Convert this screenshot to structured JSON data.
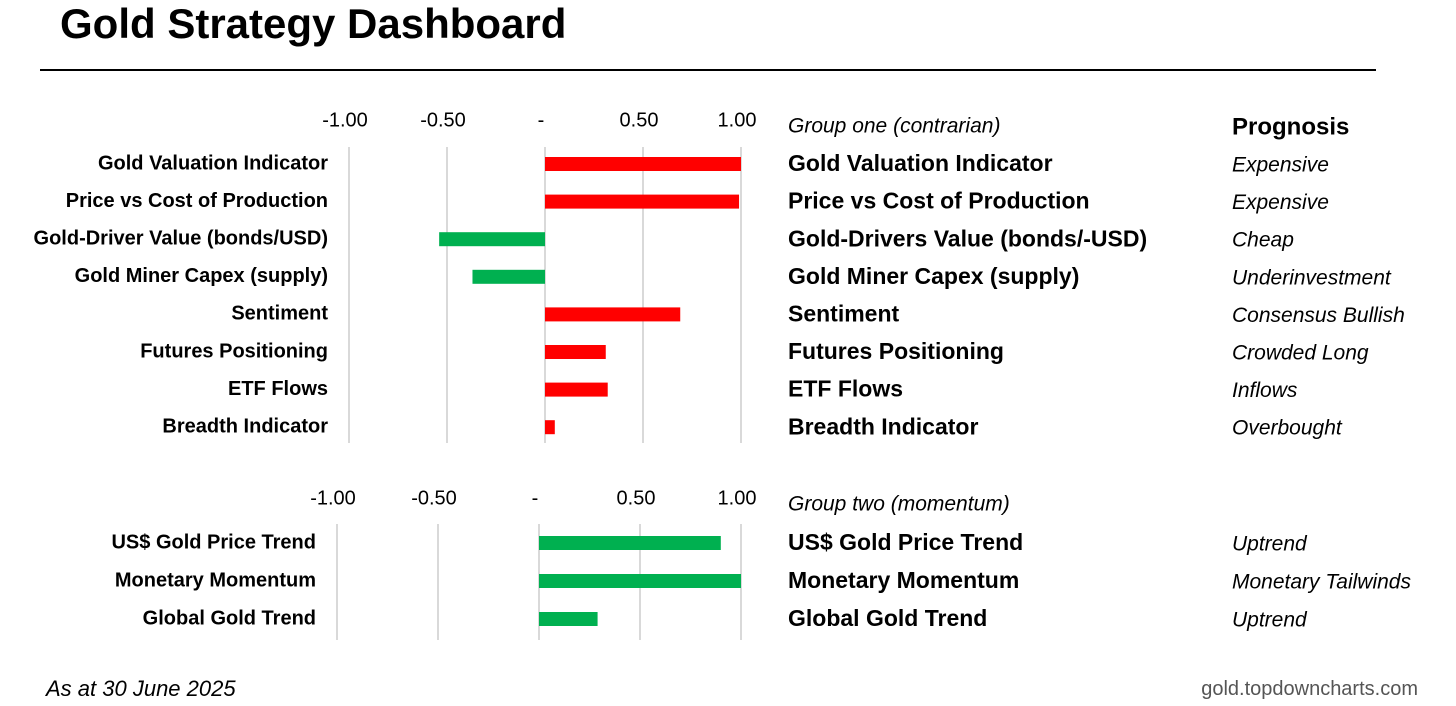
{
  "title": "Gold Strategy Dashboard",
  "prognosis_header": "Prognosis",
  "footer": {
    "date": "As at 30 June 2025",
    "source": "gold.topdowncharts.com"
  },
  "colors": {
    "positive_bar": "#ff0000",
    "negative_bar": "#00b050",
    "gridline": "#d9d9d9"
  },
  "chart_data": [
    {
      "type": "bar",
      "orientation": "horizontal",
      "title": "Group one (contrarian)",
      "xlim": [
        -1.0,
        1.0
      ],
      "ticks": [
        -1.0,
        -0.5,
        0,
        0.5,
        1.0
      ],
      "tick_labels": [
        "-1.00",
        "-0.50",
        "-",
        "0.50",
        "1.00"
      ],
      "color_rule": "positive=red, negative=green",
      "categories": [
        "Gold Valuation Indicator",
        "Price vs Cost of Production",
        "Gold-Driver Value (bonds/USD)",
        "Gold Miner Capex (supply)",
        "Sentiment",
        "Futures Positioning",
        "ETF Flows",
        "Breadth Indicator"
      ],
      "values": [
        1.0,
        0.99,
        -0.54,
        -0.37,
        0.69,
        0.31,
        0.32,
        0.05
      ],
      "table_names": [
        "Gold Valuation Indicator",
        "Price vs Cost of Production",
        "Gold-Drivers Value (bonds/-USD)",
        "Gold Miner Capex (supply)",
        "Sentiment",
        "Futures Positioning",
        "ETF Flows",
        "Breadth Indicator"
      ],
      "prognosis": [
        "Expensive",
        "Expensive",
        "Cheap",
        "Underinvestment",
        "Consensus Bullish",
        "Crowded Long",
        "Inflows",
        "Overbought"
      ]
    },
    {
      "type": "bar",
      "orientation": "horizontal",
      "title": "Group two (momentum)",
      "xlim": [
        -1.0,
        1.0
      ],
      "ticks": [
        -1.0,
        -0.5,
        0,
        0.5,
        1.0
      ],
      "tick_labels": [
        "-1.00",
        "-0.50",
        "-",
        "0.50",
        "1.00"
      ],
      "color_rule": "all green",
      "categories": [
        "US$ Gold Price Trend",
        "Monetary Momentum",
        "Global Gold Trend"
      ],
      "values": [
        0.9,
        1.0,
        0.29
      ],
      "table_names": [
        "US$ Gold Price Trend",
        "Monetary Momentum",
        "Global Gold Trend"
      ],
      "prognosis": [
        "Uptrend",
        "Monetary Tailwinds",
        "Uptrend"
      ]
    }
  ]
}
